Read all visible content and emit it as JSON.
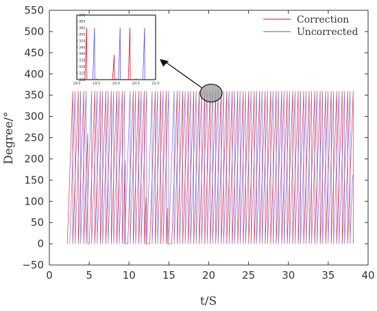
{
  "chart_data": {
    "type": "line",
    "xlabel": "t/S",
    "ylabel": "Degree/°",
    "xlim": [
      0,
      40
    ],
    "ylim": [
      -50,
      550
    ],
    "xticks": [
      0,
      5,
      10,
      15,
      20,
      25,
      30,
      35,
      40
    ],
    "yticks": [
      -50,
      0,
      50,
      100,
      150,
      200,
      250,
      300,
      350,
      400,
      450,
      500,
      550
    ],
    "xtick_labels": [
      "0",
      "5",
      "10",
      "15",
      "20",
      "25",
      "30",
      "35",
      "40"
    ],
    "ytick_labels": [
      "−50",
      "0",
      "50",
      "100",
      "150",
      "200",
      "250",
      "300",
      "350",
      "400",
      "450",
      "500",
      "550"
    ],
    "grid": false,
    "legend_position": "top-right",
    "series": [
      {
        "name": "Correction",
        "color": "#e8001c",
        "pattern": "sawtooth",
        "t_start": 2.25,
        "t_end": 38.15,
        "period": 0.69,
        "min": 0,
        "max": 360,
        "partial_peaks": [
          {
            "t": 4.9,
            "value": 260
          },
          {
            "t": 9.8,
            "value": 195
          },
          {
            "t": 12.2,
            "value": 110
          },
          {
            "t": 14.8,
            "value": 85
          }
        ]
      },
      {
        "name": "Uncorrected",
        "color": "#5050e8",
        "pattern": "sawtooth",
        "t_start": 2.55,
        "t_end": 38.05,
        "period": 0.69,
        "min": 0,
        "max": 360,
        "partial_peaks": []
      }
    ],
    "inset": {
      "xlim": [
        19.0,
        21.0
      ],
      "ylim": [
        320,
        370
      ],
      "xticks": [
        19.0,
        19.5,
        20.0,
        20.5,
        21.0
      ],
      "xtick_labels": [
        "19.0",
        "19.5",
        "20.0",
        "20.5",
        "21.0"
      ],
      "yticks": [
        320,
        325,
        330,
        335,
        340,
        345,
        350,
        355,
        360,
        365,
        370
      ],
      "ytick_labels": [
        "320",
        "325",
        "330",
        "335",
        "340",
        "345",
        "350",
        "355",
        "360",
        "365",
        "370"
      ],
      "series": [
        {
          "name": "Correction",
          "color": "#e8001c",
          "peaks": [
            {
              "t": 19.25,
              "value": 360
            },
            {
              "t": 19.95,
              "value": 339
            },
            {
              "t": 20.35,
              "value": 360
            }
          ]
        },
        {
          "name": "Uncorrected",
          "color": "#5050e8",
          "peaks": [
            {
              "t": 19.45,
              "value": 360
            },
            {
              "t": 20.1,
              "value": 360
            },
            {
              "t": 20.72,
              "value": 360
            }
          ]
        }
      ]
    },
    "annotation": {
      "type": "zoom-callout",
      "from_t": 20.3,
      "from_value": 355,
      "to": "inset"
    }
  }
}
